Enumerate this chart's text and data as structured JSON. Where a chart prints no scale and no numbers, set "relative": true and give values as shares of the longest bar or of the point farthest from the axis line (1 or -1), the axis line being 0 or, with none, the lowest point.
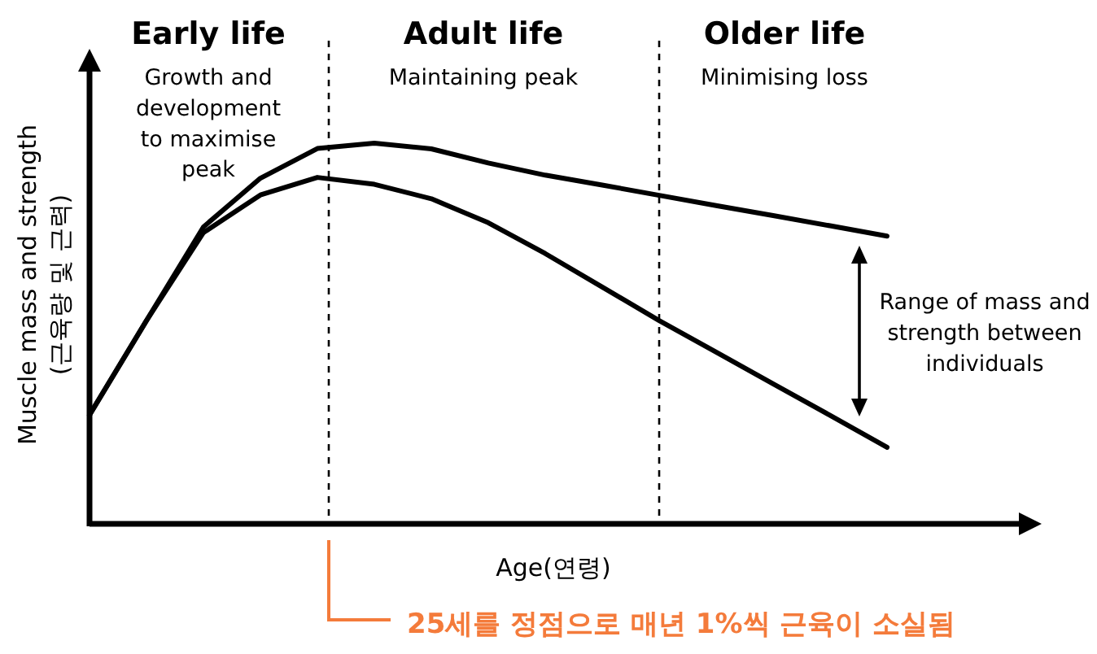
{
  "chart_data": {
    "type": "line",
    "relative": true,
    "xlabel": "Age(연령)",
    "ylabel": "Muscle mass and strength\n(근육량 및 근력)",
    "categories": [
      null,
      null,
      null,
      null,
      null,
      null,
      null,
      null,
      null,
      null,
      null,
      null,
      null,
      null,
      null
    ],
    "series": [
      {
        "color": "#000000",
        "values": [
          0.286,
          0.534,
          0.78,
          0.908,
          0.986,
          1,
          0.985,
          0.948,
          0.916,
          0.89,
          0.863,
          0.836,
          0.81,
          0.783,
          0.756
        ]
      },
      {
        "color": "#000000",
        "values": [
          0.286,
          0.534,
          0.765,
          0.864,
          0.91,
          0.892,
          0.854,
          0.791,
          0.71,
          0.622,
          0.534,
          0.451,
          0.368,
          0.285,
          0.201
        ]
      }
    ],
    "annotations": [
      "Early life",
      "Growth and development to maximise peak",
      "Adult life",
      "Maintaining peak",
      "Older life",
      "Minimising loss",
      "Range of mass and strength between individuals",
      "25세를 정점으로 매년 1%씩 근육이 소실됨"
    ]
  }
}
